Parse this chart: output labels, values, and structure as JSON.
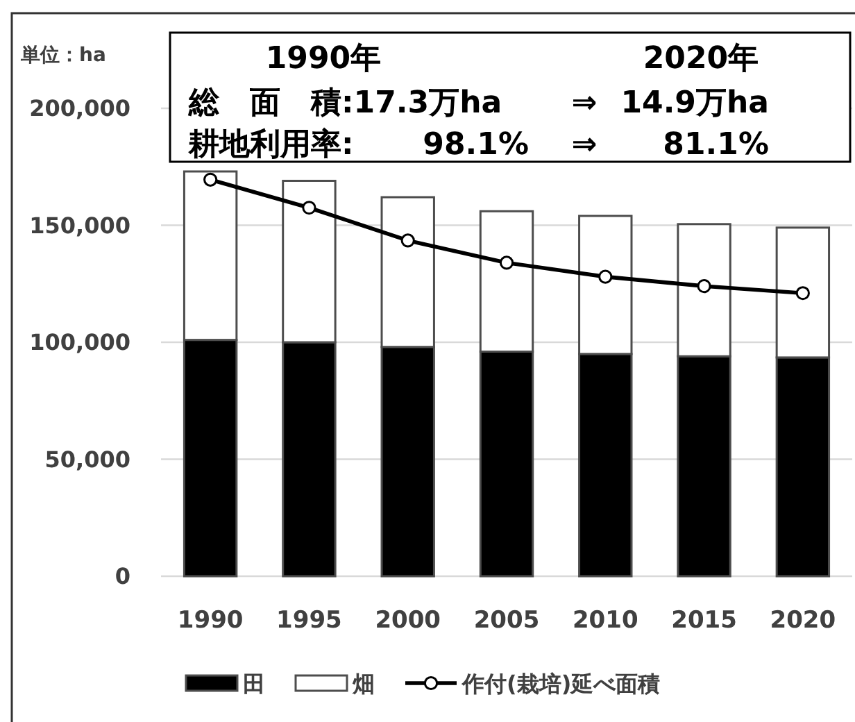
{
  "chart_data": {
    "type": "bar",
    "stacked": true,
    "ylabel": "単位：ha",
    "annotations": [
      "1990年",
      "2020年",
      "総　面　積:17.3万ha",
      "⇒",
      "14.9万ha",
      "耕地利用率:",
      "98.1%",
      "⇒",
      "81.1%"
    ],
    "categories": [
      "1990",
      "1995",
      "2000",
      "2005",
      "2010",
      "2015",
      "2020"
    ],
    "series": [
      {
        "name": "田",
        "color": "#000000",
        "values": [
          101000,
          100000,
          98000,
          96000,
          95000,
          94000,
          93500
        ]
      },
      {
        "name": "畑",
        "color": "#ffffff",
        "values": [
          72000,
          69000,
          64000,
          60000,
          59000,
          56500,
          55500
        ]
      },
      {
        "name": "作付(栽培)延べ面積",
        "type": "line",
        "color": "#000000",
        "values": [
          169500,
          157500,
          143500,
          134000,
          128000,
          124000,
          121000
        ]
      }
    ],
    "ylim": [
      0,
      200000
    ],
    "yticks": [
      0,
      {
        "value": 50000,
        "label": "50,000"
      },
      {
        "value": 100000,
        "label": "100,000"
      },
      {
        "value": 150000,
        "label": "150,000"
      },
      {
        "value": 200000,
        "label": "200,000"
      }
    ],
    "grid": "y",
    "legend": "bottom",
    "marker": "circle"
  }
}
